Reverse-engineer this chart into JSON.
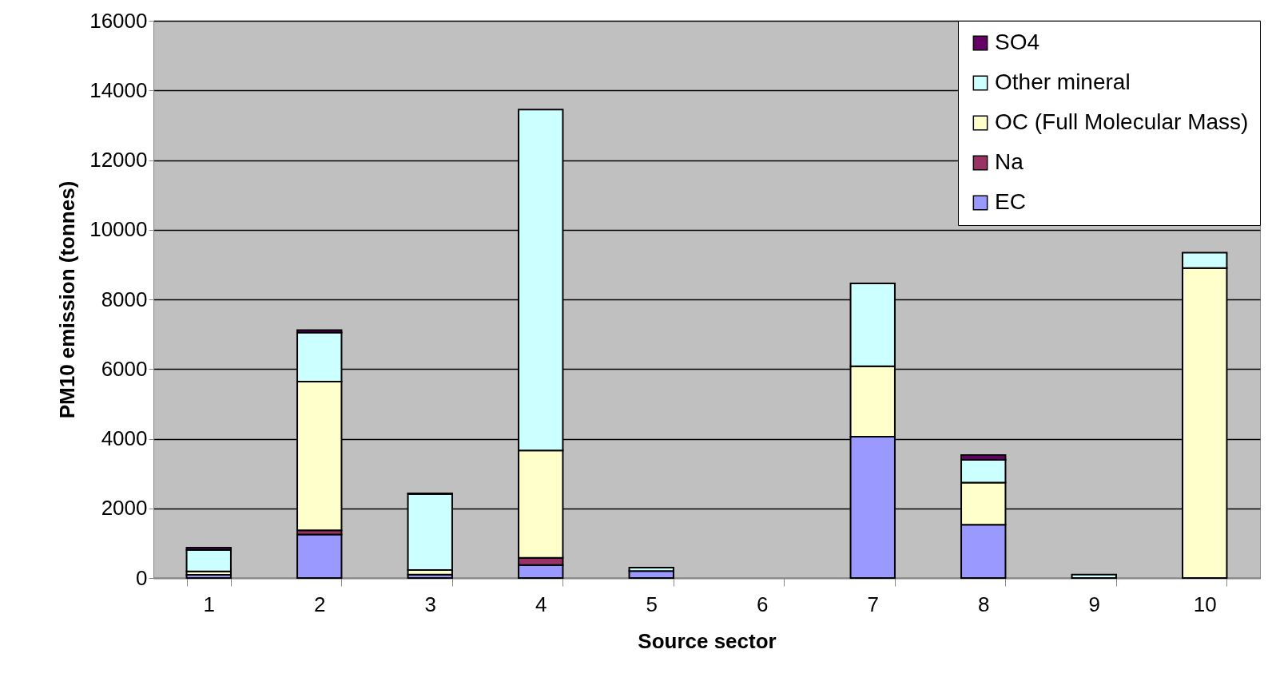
{
  "chart_data": {
    "type": "bar",
    "stacked": true,
    "xlabel": "Source sector",
    "ylabel": "PM10 emission (tonnes)",
    "categories": [
      "1",
      "2",
      "3",
      "4",
      "5",
      "6",
      "7",
      "8",
      "9",
      "10"
    ],
    "series": [
      {
        "name": "EC",
        "color": "#9999ff",
        "values": [
          90,
          1250,
          100,
          370,
          200,
          null,
          4060,
          1530,
          null,
          null
        ]
      },
      {
        "name": "Na",
        "color": "#993366",
        "values": [
          null,
          120,
          null,
          210,
          null,
          null,
          null,
          null,
          null,
          null
        ]
      },
      {
        "name": "OC (Full Molecular Mass)",
        "color": "#ffffcc",
        "values": [
          100,
          4270,
          130,
          3080,
          null,
          null,
          2020,
          1210,
          null,
          8900
        ]
      },
      {
        "name": "Other mineral",
        "color": "#ccffff",
        "values": [
          620,
          1410,
          2180,
          9790,
          100,
          null,
          2380,
          650,
          100,
          440
        ]
      },
      {
        "name": "SO4",
        "color": "#660066",
        "values": [
          60,
          70,
          20,
          null,
          null,
          null,
          null,
          140,
          null,
          null
        ]
      }
    ],
    "ylim": [
      0,
      16000
    ],
    "yticks": [
      0,
      2000,
      4000,
      6000,
      8000,
      10000,
      12000,
      14000,
      16000
    ],
    "grid": "y",
    "legend": "top right"
  }
}
